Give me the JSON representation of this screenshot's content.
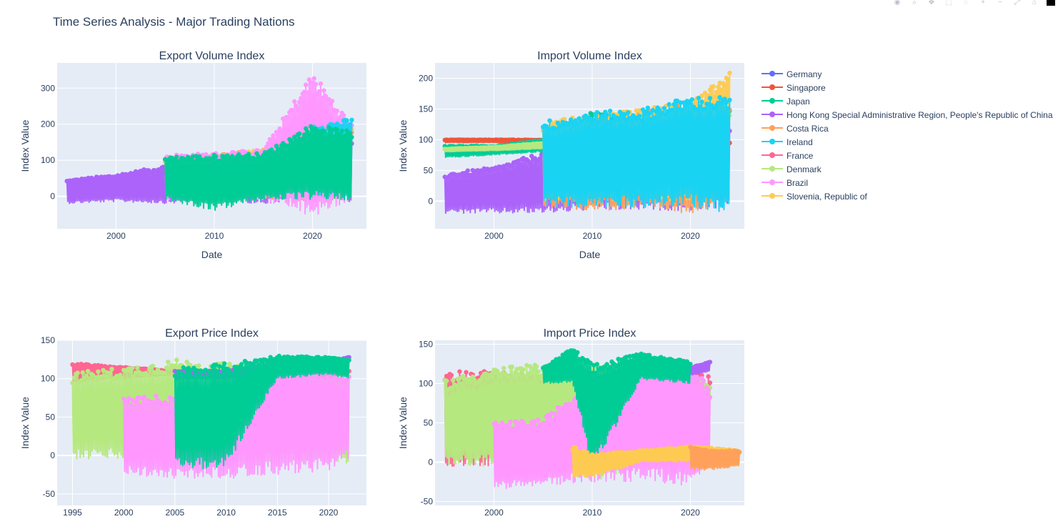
{
  "title": "Time Series Analysis - Major Trading Nations",
  "modebar": {
    "buttons": [
      "camera-icon",
      "zoom-icon",
      "pan-icon",
      "box-select-icon",
      "lasso-icon",
      "zoom-in-icon",
      "zoom-out-icon",
      "autoscale-icon",
      "home-icon"
    ]
  },
  "legend": {
    "placement": "right",
    "items": [
      {
        "name": "Germany",
        "color": "#636efa"
      },
      {
        "name": "Singapore",
        "color": "#EF553B"
      },
      {
        "name": "Japan",
        "color": "#00cc96"
      },
      {
        "name": "Hong Kong Special Administrative Region, People's Republic of China",
        "color": "#ab63fa"
      },
      {
        "name": "Costa Rica",
        "color": "#FFA15A"
      },
      {
        "name": "Ireland",
        "color": "#19d3f3"
      },
      {
        "name": "France",
        "color": "#FF6692"
      },
      {
        "name": "Denmark",
        "color": "#B6E880"
      },
      {
        "name": "Brazil",
        "color": "#FF97FF"
      },
      {
        "name": "Slovenia, Republic of",
        "color": "#FECB52"
      }
    ]
  },
  "chart_data": [
    {
      "type": "line",
      "title": "Export Volume Index",
      "xlabel": "Date",
      "ylabel": "Index Value",
      "xlim": [
        1994.0,
        2025.5
      ],
      "ylim": [
        -90,
        370
      ],
      "xticks": [
        2000,
        2010,
        2020
      ],
      "yticks": [
        0,
        100,
        200,
        300
      ],
      "grid": true,
      "series": [
        {
          "name": "Hong Kong Special Administrative Region, People's Republic of China",
          "x": [
            1995,
            2000,
            2005,
            2010,
            2015,
            2020,
            2024
          ],
          "low": [
            -20,
            -15,
            -20,
            -15,
            -20,
            -15,
            -15
          ],
          "high": [
            45,
            60,
            85,
            100,
            110,
            120,
            160
          ]
        },
        {
          "name": "Costa Rica",
          "x": [
            2005,
            2010,
            2015,
            2020,
            2024
          ],
          "low": [
            0,
            -10,
            -10,
            -15,
            -10
          ],
          "high": [
            110,
            115,
            130,
            210,
            200
          ]
        },
        {
          "name": "Slovenia, Republic of",
          "x": [
            2005,
            2010,
            2015,
            2020,
            2024
          ],
          "low": [
            0,
            0,
            0,
            0,
            0
          ],
          "high": [
            100,
            110,
            130,
            170,
            200
          ]
        },
        {
          "name": "Brazil",
          "x": [
            2005,
            2010,
            2015,
            2020,
            2024
          ],
          "low": [
            -10,
            -10,
            -10,
            -60,
            -10
          ],
          "high": [
            115,
            120,
            130,
            345,
            200
          ]
        },
        {
          "name": "Ireland",
          "x": [
            2020,
            2024
          ],
          "low": [
            0,
            0
          ],
          "high": [
            200,
            215
          ]
        },
        {
          "name": "Japan",
          "x": [
            2005,
            2010,
            2015,
            2020,
            2024
          ],
          "low": [
            -10,
            -40,
            -10,
            -10,
            -10
          ],
          "high": [
            110,
            115,
            120,
            200,
            180
          ]
        }
      ]
    },
    {
      "type": "line",
      "title": "Import Volume Index",
      "xlabel": "Date",
      "ylabel": "Index Value",
      "xlim": [
        1994.0,
        2025.5
      ],
      "ylim": [
        -45,
        225
      ],
      "xticks": [
        2000,
        2010,
        2020
      ],
      "yticks": [
        0,
        50,
        100,
        150,
        200
      ],
      "grid": true,
      "series": [
        {
          "name": "Hong Kong Special Administrative Region, People's Republic of China",
          "x": [
            1995,
            2000,
            2005,
            2010,
            2015,
            2020,
            2024
          ],
          "low": [
            -20,
            -20,
            -20,
            -15,
            -15,
            -15,
            -10
          ],
          "high": [
            45,
            55,
            80,
            100,
            110,
            120,
            130
          ]
        },
        {
          "name": "Singapore",
          "x": [
            1995,
            2000,
            2005,
            2010,
            2015,
            2020,
            2024
          ],
          "low": [
            95,
            95,
            90,
            95,
            110,
            115,
            90
          ],
          "high": [
            100,
            100,
            100,
            105,
            125,
            135,
            95
          ]
        },
        {
          "name": "Japan",
          "x": [
            1995,
            2000,
            2005,
            2010,
            2015,
            2020,
            2024
          ],
          "low": [
            70,
            75,
            80,
            80,
            90,
            100,
            100
          ],
          "high": [
            90,
            90,
            100,
            145,
            130,
            140,
            150
          ]
        },
        {
          "name": "Denmark",
          "x": [
            1995,
            2000,
            2005,
            2010,
            2015,
            2020,
            2024
          ],
          "low": [
            80,
            82,
            85,
            90,
            95,
            100,
            130
          ],
          "high": [
            85,
            88,
            95,
            105,
            110,
            125,
            140
          ]
        },
        {
          "name": "Costa Rica",
          "x": [
            2005,
            2010,
            2015,
            2020,
            2024
          ],
          "low": [
            -10,
            -15,
            -15,
            -20,
            0
          ],
          "high": [
            120,
            130,
            145,
            160,
            155
          ]
        },
        {
          "name": "Slovenia, Republic of",
          "x": [
            2005,
            2010,
            2015,
            2020,
            2024
          ],
          "low": [
            0,
            0,
            0,
            0,
            0
          ],
          "high": [
            130,
            140,
            150,
            160,
            210
          ]
        },
        {
          "name": "Ireland",
          "x": [
            2005,
            2010,
            2015,
            2020,
            2024
          ],
          "low": [
            -10,
            -10,
            -10,
            -10,
            -20
          ],
          "high": [
            130,
            145,
            150,
            170,
            170
          ]
        }
      ]
    },
    {
      "type": "line",
      "title": "Export Price Index",
      "xlabel": "",
      "ylabel": "Index Value",
      "xlim": [
        1993.5,
        2023.7
      ],
      "ylim": [
        -65,
        150
      ],
      "xticks": [
        1995,
        2000,
        2005,
        2010,
        2015,
        2020
      ],
      "yticks": [
        -50,
        0,
        50,
        100,
        150
      ],
      "grid": true,
      "series": [
        {
          "name": "France",
          "x": [
            1995,
            2000,
            2005,
            2010,
            2015,
            2020,
            2022
          ],
          "low": [
            95,
            100,
            105,
            100,
            100,
            100,
            105
          ],
          "high": [
            120,
            115,
            110,
            110,
            110,
            115,
            110
          ]
        },
        {
          "name": "Denmark",
          "x": [
            1995,
            2000,
            2005,
            2010,
            2015,
            2020,
            2022
          ],
          "low": [
            -5,
            -5,
            -10,
            -10,
            -10,
            -10,
            -10
          ],
          "high": [
            108,
            115,
            125,
            120,
            110,
            110,
            105
          ]
        },
        {
          "name": "Brazil",
          "x": [
            2000,
            2005,
            2010,
            2015,
            2020,
            2022
          ],
          "low": [
            -25,
            -30,
            -30,
            -25,
            -20,
            -5
          ],
          "high": [
            75,
            80,
            100,
            130,
            120,
            105
          ]
        },
        {
          "name": "Hong Kong Special Administrative Region, People's Republic of China",
          "x": [
            2005,
            2010,
            2015,
            2020,
            2022
          ],
          "low": [
            100,
            100,
            105,
            110,
            120
          ],
          "high": [
            110,
            110,
            118,
            123,
            128
          ]
        },
        {
          "name": "Japan",
          "x": [
            2005,
            2010,
            2015,
            2020,
            2022
          ],
          "low": [
            -20,
            -15,
            100,
            105,
            100
          ],
          "high": [
            115,
            120,
            130,
            128,
            125
          ]
        }
      ]
    },
    {
      "type": "line",
      "title": "Import Price Index",
      "xlabel": "",
      "ylabel": "Index Value",
      "xlim": [
        1994.0,
        2025.5
      ],
      "ylim": [
        -55,
        155
      ],
      "xticks": [
        2000,
        2010,
        2020
      ],
      "yticks": [
        -50,
        0,
        50,
        100,
        150
      ],
      "grid": true,
      "series": [
        {
          "name": "France",
          "x": [
            1995,
            2000,
            2005,
            2010,
            2015,
            2020,
            2022
          ],
          "low": [
            -5,
            -5,
            -5,
            -5,
            -5,
            -5,
            -5
          ],
          "high": [
            118,
            115,
            110,
            110,
            110,
            115,
            110
          ]
        },
        {
          "name": "Denmark",
          "x": [
            1995,
            2000,
            2005,
            2010,
            2015,
            2020,
            2022
          ],
          "low": [
            -5,
            -5,
            -10,
            -25,
            -10,
            -10,
            -5
          ],
          "high": [
            105,
            120,
            125,
            125,
            115,
            110,
            105
          ]
        },
        {
          "name": "Brazil",
          "x": [
            2000,
            2005,
            2010,
            2015,
            2020,
            2022
          ],
          "low": [
            -35,
            -30,
            -25,
            -25,
            -30,
            -5
          ],
          "high": [
            50,
            55,
            105,
            135,
            125,
            95
          ]
        },
        {
          "name": "Hong Kong Special Administrative Region, People's Republic of China",
          "x": [
            2010,
            2015,
            2020,
            2022
          ],
          "low": [
            100,
            110,
            110,
            115
          ],
          "high": [
            105,
            120,
            120,
            128
          ]
        },
        {
          "name": "Japan",
          "x": [
            2005,
            2008,
            2010,
            2015,
            2020
          ],
          "low": [
            100,
            100,
            -10,
            105,
            100
          ],
          "high": [
            120,
            145,
            125,
            138,
            128
          ]
        },
        {
          "name": "Slovenia, Republic of",
          "x": [
            2008,
            2010,
            2015,
            2020,
            2025
          ],
          "low": [
            -20,
            -20,
            0,
            0,
            -5
          ],
          "high": [
            20,
            10,
            15,
            20,
            15
          ]
        },
        {
          "name": "Costa Rica",
          "x": [
            2020,
            2022,
            2025
          ],
          "low": [
            -10,
            -10,
            -5
          ],
          "high": [
            20,
            15,
            15
          ]
        }
      ]
    }
  ]
}
